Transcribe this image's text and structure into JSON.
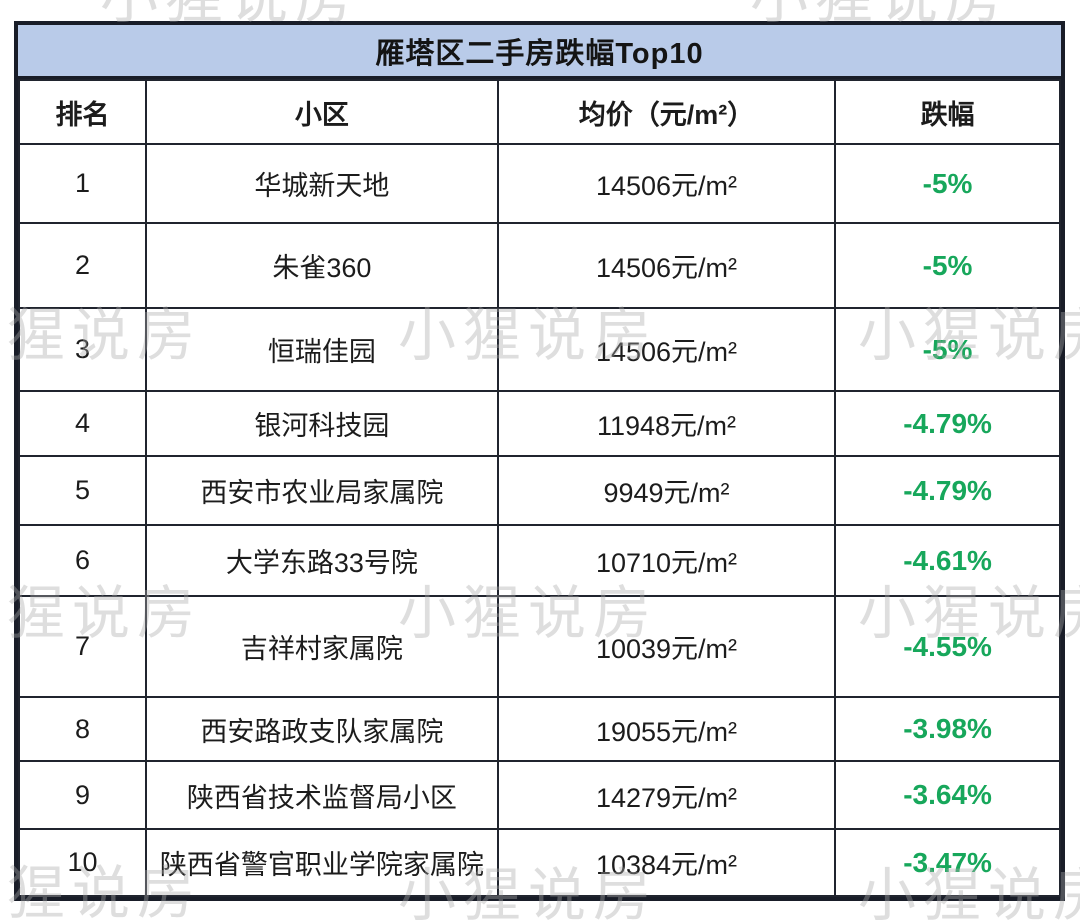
{
  "title": "雁塔区二手房跌幅Top10",
  "watermark": {
    "text": "小猩说房"
  },
  "colors": {
    "title_bar_bg": "#B9CBE9",
    "border": "#191D28",
    "text": "#1C1C1C",
    "drop_green": "#17A75B",
    "watermark_gray": "#ABABAB"
  },
  "table": {
    "headers": {
      "rank": "排名",
      "community": "小区",
      "price": "均价（元/m²）",
      "drop": "跌幅"
    },
    "rows": [
      {
        "rank": "1",
        "name": "华城新天地",
        "price": "14506元/m²",
        "drop": "-5%"
      },
      {
        "rank": "2",
        "name": "朱雀360",
        "price": "14506元/m²",
        "drop": "-5%"
      },
      {
        "rank": "3",
        "name": "恒瑞佳园",
        "price": "14506元/m²",
        "drop": "-5%"
      },
      {
        "rank": "4",
        "name": "银河科技园",
        "price": "11948元/m²",
        "drop": "-4.79%"
      },
      {
        "rank": "5",
        "name": "西安市农业局家属院",
        "price": "9949元/m²",
        "drop": "-4.79%"
      },
      {
        "rank": "6",
        "name": "大学东路33号院",
        "price": "10710元/m²",
        "drop": "-4.61%"
      },
      {
        "rank": "7",
        "name": "吉祥村家属院",
        "price": "10039元/m²",
        "drop": "-4.55%"
      },
      {
        "rank": "8",
        "name": "西安路政支队家属院",
        "price": "19055元/m²",
        "drop": "-3.98%"
      },
      {
        "rank": "9",
        "name": "陕西省技术监督局小区",
        "price": "14279元/m²",
        "drop": "-3.64%"
      },
      {
        "rank": "10",
        "name": "陕西省警官职业学院家属院",
        "price": "10384元/m²",
        "drop": "-3.47%"
      }
    ]
  },
  "chart_data": {
    "type": "table",
    "title": "雁塔区二手房跌幅Top10",
    "columns": [
      "排名",
      "小区",
      "均价（元/m²）",
      "跌幅"
    ],
    "rows": [
      [
        1,
        "华城新天地",
        "14506元/m²",
        "-5%"
      ],
      [
        2,
        "朱雀360",
        "14506元/m²",
        "-5%"
      ],
      [
        3,
        "恒瑞佳园",
        "14506元/m²",
        "-5%"
      ],
      [
        4,
        "银河科技园",
        "11948元/m²",
        "-4.79%"
      ],
      [
        5,
        "西安市农业局家属院",
        "9949元/m²",
        "-4.79%"
      ],
      [
        6,
        "大学东路33号院",
        "10710元/m²",
        "-4.61%"
      ],
      [
        7,
        "吉祥村家属院",
        "10039元/m²",
        "-4.55%"
      ],
      [
        8,
        "西安路政支队家属院",
        "19055元/m²",
        "-3.98%"
      ],
      [
        9,
        "陕西省技术监督局小区",
        "14279元/m²",
        "-3.64%"
      ],
      [
        10,
        "陕西省警官职业学院家属院",
        "10384元/m²",
        "-3.47%"
      ]
    ],
    "price_yuan_per_sqm": [
      14506,
      14506,
      14506,
      11948,
      9949,
      10710,
      10039,
      19055,
      14279,
      10384
    ],
    "drop_percent": [
      -5,
      -5,
      -5,
      -4.79,
      -4.79,
      -4.61,
      -4.55,
      -3.98,
      -3.64,
      -3.47
    ]
  }
}
